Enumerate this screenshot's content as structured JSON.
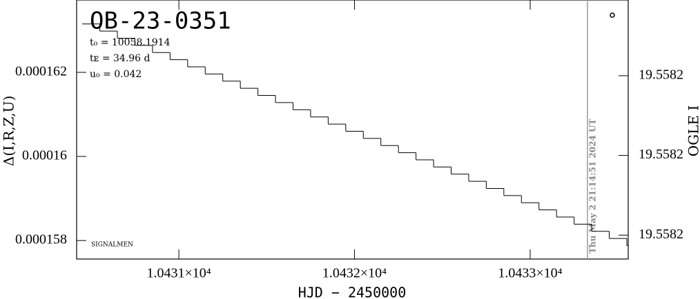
{
  "chart_data": {
    "type": "line",
    "title": "OB-23-0351",
    "annotations": [
      "t₀ = 10058.1914",
      "tᴇ = 34.96 d",
      "u₀ = 0.042"
    ],
    "footer": "SIGNALMEN",
    "timestamp": "Thu May  2 21:14:51 2024 UT",
    "marker_line_x": 10433.326,
    "x_label": "HJD − 2450000",
    "y_label": "Δ(I,R,Z,U)",
    "y2_label": "OGLE I",
    "xlim": [
      10430.418,
      10433.558
    ],
    "ylim": [
      0.00015756,
      0.00016372
    ],
    "y2lim": [
      19.558194,
      19.558259
    ],
    "xticks": [
      {
        "value": 10431,
        "label": "1.0431×10⁴"
      },
      {
        "value": 10432,
        "label": "1.0432×10⁴"
      },
      {
        "value": 10433,
        "label": "1.0433×10⁴"
      }
    ],
    "yticks": [
      0.000158,
      0.00016,
      0.000162
    ],
    "y2ticks": [
      {
        "value": 19.5582,
        "label": "19.5582"
      },
      {
        "value": 19.55822,
        "label": "19.5582"
      },
      {
        "value": 19.55824,
        "label": "19.5582"
      }
    ],
    "series": [
      {
        "color": "#000000",
        "x": [
          10430.45,
          10430.55,
          10430.65,
          10430.75,
          10430.85,
          10430.95,
          10431.05,
          10431.15,
          10431.25,
          10431.35,
          10431.45,
          10431.55,
          10431.65,
          10431.75,
          10431.85,
          10431.95,
          10432.05,
          10432.15,
          10432.25,
          10432.35,
          10432.45,
          10432.55,
          10432.65,
          10432.75,
          10432.85,
          10432.95,
          10433.05,
          10433.15,
          10433.25,
          10433.35,
          10433.45,
          10433.55
        ],
        "values": [
          0.00016315,
          0.00016298,
          0.00016281,
          0.00016264,
          0.00016247,
          0.0001623,
          0.00016213,
          0.00016196,
          0.00016179,
          0.00016162,
          0.00016145,
          0.00016128,
          0.00016111,
          0.00016094,
          0.00016077,
          0.0001606,
          0.00016043,
          0.00016026,
          0.00016009,
          0.00015992,
          0.00015975,
          0.00015958,
          0.00015941,
          0.00015924,
          0.00015907,
          0.0001589,
          0.00015873,
          0.00015856,
          0.00015839,
          0.00015822,
          0.00015805,
          0.00015788
        ]
      }
    ]
  }
}
